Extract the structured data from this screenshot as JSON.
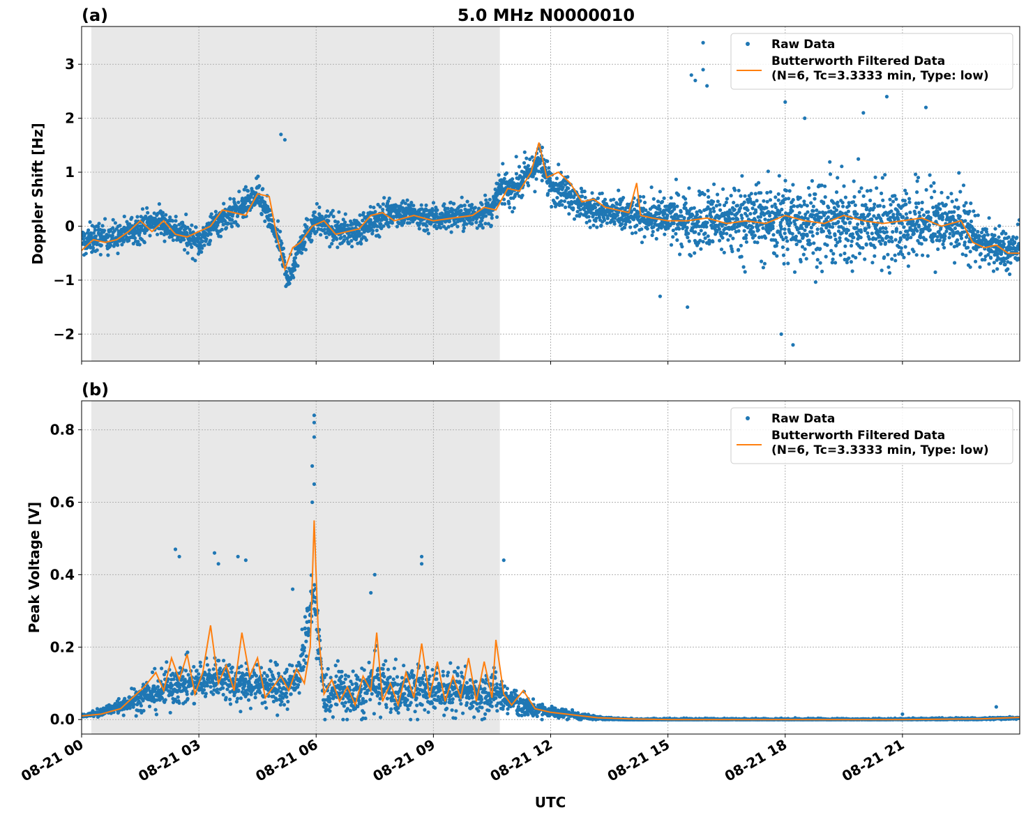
{
  "chart_data": {
    "title": "5.0 MHz N0000010",
    "xlabel": "UTC",
    "x_ticks": [
      "08-21 00",
      "08-21 03",
      "08-21 06",
      "08-21 09",
      "08-21 12",
      "08-21 15",
      "08-21 18",
      "08-21 21"
    ],
    "x_tick_hours": [
      0,
      3,
      6,
      9,
      12,
      15,
      18,
      21
    ],
    "x_range_hours": [
      0,
      24
    ],
    "shaded_region_hours": [
      0.25,
      10.7
    ],
    "grid": true,
    "legend": {
      "placement": "upper right",
      "entries": [
        {
          "label": "Raw Data",
          "color": "#1f77b4",
          "marker": "dot"
        },
        {
          "label_line1": "Butterworth Filtered Data",
          "label_line2": "(N=6, Tc=3.3333 min, Type: low)",
          "color": "#ff7f0e",
          "marker": "line"
        }
      ]
    },
    "panels": [
      {
        "label": "(a)",
        "type": "scatter",
        "ylabel": "Doppler Shift [Hz]",
        "ylim": [
          -2.5,
          3.7
        ],
        "y_ticks": [
          -2,
          -1,
          0,
          1,
          2,
          3
        ],
        "y_tick_labels": [
          "−2",
          "−1",
          "0",
          "1",
          "2",
          "3"
        ],
        "series": [
          {
            "name": "Raw Data",
            "color": "#1f77b4",
            "center_hours": [
              0,
              0.5,
              1,
              1.5,
              2,
              2.5,
              3,
              3.5,
              4,
              4.5,
              5,
              5.3,
              5.6,
              6,
              6.5,
              7,
              7.5,
              8,
              8.5,
              9,
              9.5,
              10,
              10.5,
              10.7,
              11,
              11.5,
              11.7,
              12,
              12.5,
              13,
              14,
              15,
              16,
              17,
              18,
              19,
              20,
              21,
              22,
              22.5,
              23,
              23.5,
              24
            ],
            "center_values": [
              -0.3,
              -0.2,
              -0.2,
              0,
              0.1,
              -0.1,
              -0.3,
              0.1,
              0.3,
              0.6,
              -0.2,
              -1.0,
              -0.3,
              0.1,
              -0.1,
              -0.1,
              0.1,
              0.3,
              0.2,
              0.15,
              0.2,
              0.2,
              0.3,
              0.7,
              0.7,
              1.0,
              1.2,
              0.8,
              0.6,
              0.3,
              0.2,
              0.15,
              0.1,
              0.1,
              0.1,
              0.05,
              0.05,
              0.05,
              0.05,
              0.05,
              -0.3,
              -0.45,
              -0.45
            ],
            "spread_hours": [
              0,
              10.7,
              11,
              13,
              14.5,
              16,
              18,
              21,
              22.5,
              23,
              24
            ],
            "spread_values": [
              0.35,
              0.35,
              0.45,
              0.4,
              0.45,
              0.8,
              1.0,
              1.0,
              0.9,
              0.5,
              0.5
            ],
            "outliers": [
              [
                15.9,
                3.4
              ],
              [
                15.6,
                2.8
              ],
              [
                15.7,
                2.7
              ],
              [
                15.9,
                2.9
              ],
              [
                16,
                2.6
              ],
              [
                18.2,
                -2.2
              ],
              [
                17.9,
                -2.0
              ],
              [
                21.6,
                2.2
              ],
              [
                20.6,
                2.4
              ],
              [
                18,
                2.3
              ],
              [
                14.8,
                -1.3
              ],
              [
                15.5,
                -1.5
              ],
              [
                5.1,
                1.7
              ],
              [
                5.2,
                1.6
              ],
              [
                18.5,
                2.0
              ],
              [
                20,
                2.1
              ]
            ]
          },
          {
            "name": "Butterworth Filtered Data",
            "color": "#ff7f0e",
            "x_hours": [
              0,
              0.3,
              0.6,
              0.9,
              1.2,
              1.5,
              1.8,
              2.1,
              2.4,
              2.7,
              3.0,
              3.3,
              3.6,
              3.9,
              4.2,
              4.5,
              4.8,
              5.0,
              5.2,
              5.4,
              5.6,
              5.9,
              6.2,
              6.5,
              6.8,
              7.1,
              7.4,
              7.7,
              8.0,
              8.5,
              9.0,
              9.5,
              10.0,
              10.3,
              10.6,
              10.9,
              11.2,
              11.5,
              11.7,
              11.9,
              12.2,
              12.5,
              12.8,
              13.1,
              13.4,
              13.7,
              14.0,
              14.2,
              14.3,
              14.6,
              15.0,
              15.5,
              16.0,
              16.5,
              17.0,
              17.5,
              18.0,
              18.5,
              19.0,
              19.5,
              20.0,
              20.5,
              21.0,
              21.5,
              22.0,
              22.5,
              22.8,
              23.1,
              23.4,
              23.7,
              24.0
            ],
            "values": [
              -0.45,
              -0.25,
              -0.3,
              -0.25,
              -0.1,
              0.1,
              -0.1,
              0.1,
              -0.15,
              -0.2,
              -0.1,
              0.0,
              0.3,
              0.25,
              0.2,
              0.6,
              0.55,
              -0.2,
              -0.8,
              -0.4,
              -0.3,
              0.0,
              0.1,
              -0.15,
              -0.1,
              -0.05,
              0.2,
              0.25,
              0.1,
              0.2,
              0.1,
              0.15,
              0.2,
              0.35,
              0.3,
              0.7,
              0.65,
              1.0,
              1.55,
              0.9,
              1.0,
              0.8,
              0.45,
              0.5,
              0.35,
              0.3,
              0.25,
              0.8,
              0.2,
              0.15,
              0.1,
              0.1,
              0.15,
              0.05,
              0.1,
              0.05,
              0.2,
              0.1,
              0.05,
              0.2,
              0.1,
              0.05,
              0.1,
              0.15,
              0.0,
              0.1,
              -0.3,
              -0.4,
              -0.35,
              -0.5,
              -0.5
            ]
          }
        ]
      },
      {
        "label": "(b)",
        "type": "scatter",
        "ylabel": "Peak Voltage [V]",
        "ylim": [
          -0.04,
          0.88
        ],
        "y_ticks": [
          0.0,
          0.2,
          0.4,
          0.6,
          0.8
        ],
        "y_tick_labels": [
          "0.0",
          "0.2",
          "0.4",
          "0.6",
          "0.8"
        ],
        "series": [
          {
            "name": "Raw Data",
            "color": "#1f77b4",
            "center_hours": [
              0,
              0.5,
              1,
              1.5,
              2,
              2.5,
              3,
              3.5,
              4,
              4.5,
              5,
              5.5,
              5.95,
              6.2,
              6.5,
              7,
              7.5,
              8,
              8.5,
              9,
              9.5,
              10,
              10.5,
              11,
              11.5,
              12,
              12.5,
              13,
              14,
              15,
              20,
              23,
              24
            ],
            "center_values": [
              0.01,
              0.02,
              0.04,
              0.06,
              0.08,
              0.1,
              0.1,
              0.12,
              0.1,
              0.1,
              0.09,
              0.1,
              0.35,
              0.06,
              0.08,
              0.06,
              0.1,
              0.08,
              0.08,
              0.08,
              0.08,
              0.07,
              0.08,
              0.05,
              0.03,
              0.02,
              0.015,
              0.005,
              0.0,
              0.0,
              0.0,
              0.002,
              0.005
            ],
            "spread_hours": [
              0,
              1,
              2,
              5,
              6,
              10.7,
              11.5,
              12.5,
              13.5,
              24
            ],
            "spread_values": [
              0.005,
              0.03,
              0.07,
              0.08,
              0.1,
              0.08,
              0.03,
              0.015,
              0.004,
              0.004
            ],
            "outliers": [
              [
                5.95,
                0.84
              ],
              [
                5.95,
                0.82
              ],
              [
                5.95,
                0.78
              ],
              [
                5.9,
                0.7
              ],
              [
                5.95,
                0.65
              ],
              [
                5.9,
                0.6
              ],
              [
                2.5,
                0.45
              ],
              [
                2.4,
                0.47
              ],
              [
                3.4,
                0.46
              ],
              [
                4.0,
                0.45
              ],
              [
                3.5,
                0.43
              ],
              [
                4.2,
                0.44
              ],
              [
                8.7,
                0.45
              ],
              [
                8.7,
                0.43
              ],
              [
                7.5,
                0.4
              ],
              [
                10.8,
                0.44
              ],
              [
                5.4,
                0.36
              ],
              [
                7.4,
                0.35
              ],
              [
                23.4,
                0.035
              ],
              [
                21.0,
                0.015
              ]
            ]
          },
          {
            "name": "Butterworth Filtered Data",
            "color": "#ff7f0e",
            "x_hours": [
              0,
              0.5,
              1.0,
              1.3,
              1.6,
              1.9,
              2.1,
              2.3,
              2.5,
              2.7,
              2.9,
              3.1,
              3.3,
              3.5,
              3.7,
              3.9,
              4.1,
              4.3,
              4.5,
              4.7,
              4.9,
              5.1,
              5.3,
              5.5,
              5.7,
              5.85,
              5.95,
              6.05,
              6.2,
              6.4,
              6.6,
              6.8,
              7.0,
              7.2,
              7.4,
              7.55,
              7.7,
              7.9,
              8.1,
              8.3,
              8.5,
              8.7,
              8.9,
              9.1,
              9.3,
              9.5,
              9.7,
              9.9,
              10.1,
              10.3,
              10.5,
              10.6,
              10.8,
              11.0,
              11.3,
              11.6,
              12.0,
              12.4,
              12.8,
              13.2,
              14.0,
              15.0,
              18.0,
              21.0,
              23.0,
              24.0
            ],
            "values": [
              0.01,
              0.015,
              0.03,
              0.06,
              0.09,
              0.13,
              0.08,
              0.17,
              0.11,
              0.18,
              0.07,
              0.13,
              0.26,
              0.1,
              0.15,
              0.08,
              0.24,
              0.12,
              0.17,
              0.06,
              0.09,
              0.12,
              0.08,
              0.14,
              0.1,
              0.2,
              0.55,
              0.25,
              0.07,
              0.11,
              0.05,
              0.09,
              0.04,
              0.12,
              0.08,
              0.24,
              0.05,
              0.1,
              0.04,
              0.13,
              0.06,
              0.21,
              0.06,
              0.16,
              0.05,
              0.12,
              0.06,
              0.17,
              0.05,
              0.16,
              0.06,
              0.22,
              0.07,
              0.04,
              0.08,
              0.03,
              0.02,
              0.015,
              0.01,
              0.005,
              0.002,
              0.0,
              0.0,
              0.0,
              0.002,
              0.006
            ]
          }
        ]
      }
    ]
  }
}
